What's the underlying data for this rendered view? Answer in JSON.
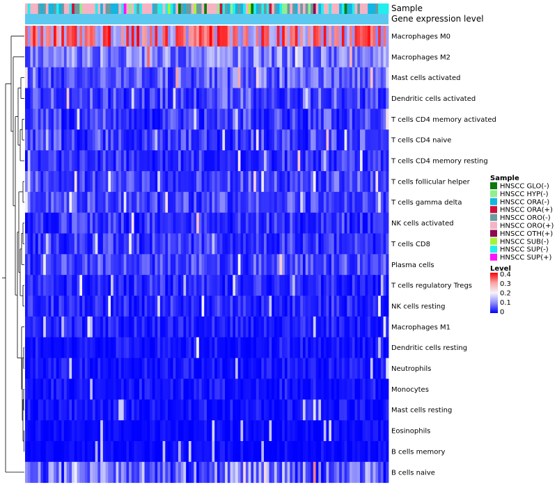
{
  "chart_data": {
    "type": "heatmap",
    "title": "",
    "annotation_labels": {
      "sample": "Sample",
      "expression": "Gene expression level"
    },
    "rows": [
      {
        "name": "Macrophages M0",
        "mean": 0.33,
        "sd": 0.06
      },
      {
        "name": "Macrophages M2",
        "mean": 0.13,
        "sd": 0.04
      },
      {
        "name": "Mast cells activated",
        "mean": 0.09,
        "sd": 0.06
      },
      {
        "name": "Dendritic cells activated",
        "mean": 0.07,
        "sd": 0.06
      },
      {
        "name": "T cells CD4 memory activated",
        "mean": 0.06,
        "sd": 0.06
      },
      {
        "name": "T cells CD4 naive",
        "mean": 0.06,
        "sd": 0.06
      },
      {
        "name": "T cells CD4 memory resting",
        "mean": 0.05,
        "sd": 0.05
      },
      {
        "name": "T cells follicular helper",
        "mean": 0.07,
        "sd": 0.05
      },
      {
        "name": "T cells gamma delta",
        "mean": 0.07,
        "sd": 0.05
      },
      {
        "name": "NK cells activated",
        "mean": 0.05,
        "sd": 0.05
      },
      {
        "name": "T cells CD8",
        "mean": 0.05,
        "sd": 0.05
      },
      {
        "name": "Plasma cells",
        "mean": 0.07,
        "sd": 0.05
      },
      {
        "name": "T cells regulatory  Tregs",
        "mean": 0.04,
        "sd": 0.04
      },
      {
        "name": "NK cells resting",
        "mean": 0.04,
        "sd": 0.04
      },
      {
        "name": "Macrophages M1",
        "mean": 0.03,
        "sd": 0.03
      },
      {
        "name": "Dendritic cells resting",
        "mean": 0.02,
        "sd": 0.03
      },
      {
        "name": "Neutrophils",
        "mean": 0.02,
        "sd": 0.03
      },
      {
        "name": "Monocytes",
        "mean": 0.02,
        "sd": 0.03
      },
      {
        "name": "Mast cells resting",
        "mean": 0.02,
        "sd": 0.03
      },
      {
        "name": "Eosinophils",
        "mean": 0.01,
        "sd": 0.02
      },
      {
        "name": "B cells memory",
        "mean": 0.01,
        "sd": 0.02
      },
      {
        "name": "B cells naive",
        "mean": 0.09,
        "sd": 0.09
      }
    ],
    "n_columns": 140,
    "sample_groups": [
      {
        "name": "HNSCC GLO(-)",
        "color": "#0b7a0b"
      },
      {
        "name": "HNSCC HYP(-)",
        "color": "#90ee90"
      },
      {
        "name": "HNSCC ORA(-)",
        "color": "#14b5e0"
      },
      {
        "name": "HNSCC ORA(+)",
        "color": "#d0103a"
      },
      {
        "name": "HNSCC ORO(-)",
        "color": "#6c9ba0"
      },
      {
        "name": "HNSCC ORO(+)",
        "color": "#f5b3c3"
      },
      {
        "name": "HNSCC OTH(+)",
        "color": "#8b0a50"
      },
      {
        "name": "HNSCC SUB(-)",
        "color": "#a4f53a"
      },
      {
        "name": "HNSCC SUP(-)",
        "color": "#22eeee"
      },
      {
        "name": "HNSCC SUP(+)",
        "color": "#ff10ff"
      }
    ],
    "sample_weights": [
      2,
      3,
      8,
      1,
      10,
      9,
      1,
      2,
      9,
      1
    ],
    "expression_bar_color": "#5bc8f0",
    "legend": {
      "sample_title": "Sample",
      "level_title": "Level",
      "level_ticks": [
        "0.4",
        "0.3",
        "0.2",
        "0.1",
        "0"
      ],
      "position": "right"
    },
    "color_scale": {
      "min": 0,
      "mid": 0.2,
      "max": 0.4,
      "low_color": "#0000ff",
      "mid_color": "#f4f4fb",
      "high_color": "#ff0000"
    }
  }
}
